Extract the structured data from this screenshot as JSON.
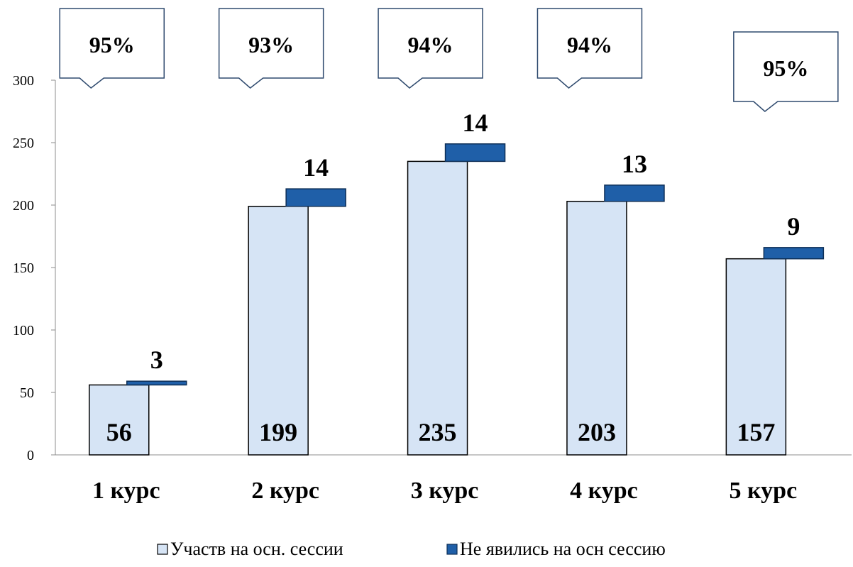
{
  "chart_data": {
    "type": "bar",
    "categories": [
      "1 курс",
      "2 курс",
      "3 курс",
      "4 курс",
      "5 курс"
    ],
    "series": [
      {
        "name": "Участв на осн. сессии",
        "values": [
          56,
          199,
          235,
          203,
          157
        ],
        "color": "#d6e4f5",
        "stroke": "#000000"
      },
      {
        "name": "Не явились на осн сессию",
        "values": [
          3,
          14,
          14,
          13,
          9
        ],
        "color": "#1f5fa8",
        "stroke": "#0e2f57"
      }
    ],
    "percent_callouts": [
      "95%",
      "93%",
      "94%",
      "94%",
      "95%"
    ],
    "ylim": [
      0,
      300
    ],
    "yticks": [
      0,
      50,
      100,
      150,
      200,
      250,
      300
    ],
    "title": "",
    "xlabel": "",
    "ylabel": "",
    "legend_position": "bottom",
    "grid": false
  }
}
